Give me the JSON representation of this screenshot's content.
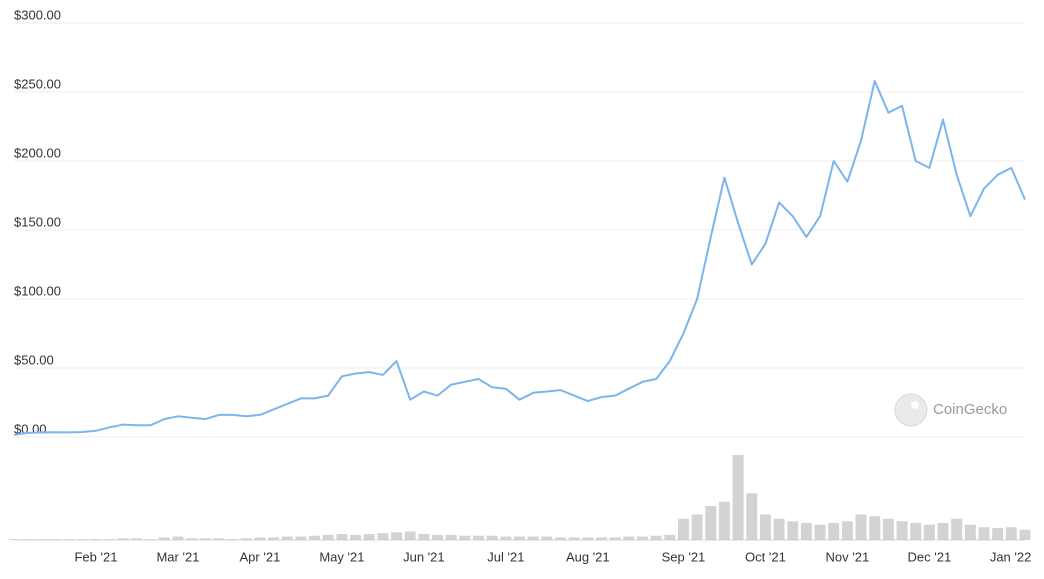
{
  "chart_data": {
    "type": "line",
    "annotation": "CoinGecko",
    "categories": [
      null,
      null,
      null,
      null,
      null,
      null,
      "Feb '21",
      null,
      null,
      null,
      null,
      null,
      "Mar '21",
      null,
      null,
      null,
      null,
      null,
      "Apr '21",
      null,
      null,
      null,
      null,
      null,
      "May '21",
      null,
      null,
      null,
      null,
      null,
      "Jun '21",
      null,
      null,
      null,
      null,
      null,
      "Jul '21",
      null,
      null,
      null,
      null,
      null,
      "Aug '21",
      null,
      null,
      null,
      null,
      null,
      null,
      "Sep '21",
      null,
      null,
      null,
      null,
      null,
      "Oct '21",
      null,
      null,
      null,
      null,
      null,
      "Nov '21",
      null,
      null,
      null,
      null,
      null,
      "Dec '21",
      null,
      null,
      null,
      null,
      null,
      "Jan '22",
      null
    ],
    "series": [
      {
        "color": "#7cb5ec",
        "values": [
          1.5,
          3,
          3.3,
          3.5,
          3.3,
          3.6,
          4.5,
          7,
          9,
          8.5,
          8.5,
          13,
          15,
          14,
          13,
          16,
          16,
          15,
          16,
          20,
          24,
          28,
          28,
          30,
          44,
          46,
          47,
          45,
          55,
          27,
          33,
          30,
          38,
          40,
          42,
          36,
          35,
          27,
          32,
          33,
          34,
          30,
          26,
          29,
          30,
          35,
          40,
          42,
          55,
          75,
          100,
          145,
          188,
          155,
          125,
          140,
          170,
          160,
          145,
          160,
          200,
          185,
          215,
          258,
          235,
          240,
          200,
          195,
          230,
          190,
          160,
          180,
          190,
          195,
          172
        ]
      },
      {
        "color": "#c8c8c8",
        "axis": "y2",
        "values": [
          1,
          1,
          1,
          1,
          1,
          1,
          1,
          1,
          2,
          2,
          1,
          3,
          4,
          2,
          2,
          2,
          1,
          2,
          3,
          3,
          4,
          4,
          5,
          6,
          7,
          6,
          7,
          8,
          9,
          10,
          7,
          6,
          6,
          5,
          5,
          5,
          4,
          4,
          4,
          4,
          3,
          3,
          3,
          3,
          3,
          4,
          4,
          5,
          6,
          25,
          30,
          40,
          45,
          100,
          55,
          30,
          25,
          22,
          20,
          18,
          20,
          22,
          30,
          28,
          25,
          22,
          20,
          18,
          20,
          25,
          18,
          15,
          14,
          15,
          12
        ]
      }
    ],
    "ylim": [
      0,
      300
    ],
    "yticks": [
      {
        "value": 0,
        "label": "$0.00"
      },
      {
        "value": 50,
        "label": "$50.00"
      },
      {
        "value": 100,
        "label": "$100.00"
      },
      {
        "value": 150,
        "label": "$150.00"
      },
      {
        "value": 200,
        "label": "$200.00"
      },
      {
        "value": 250,
        "label": "$250.00"
      },
      {
        "value": 300,
        "label": "$300.00"
      }
    ],
    "y2lim": [
      0,
      100
    ],
    "grid": true
  }
}
